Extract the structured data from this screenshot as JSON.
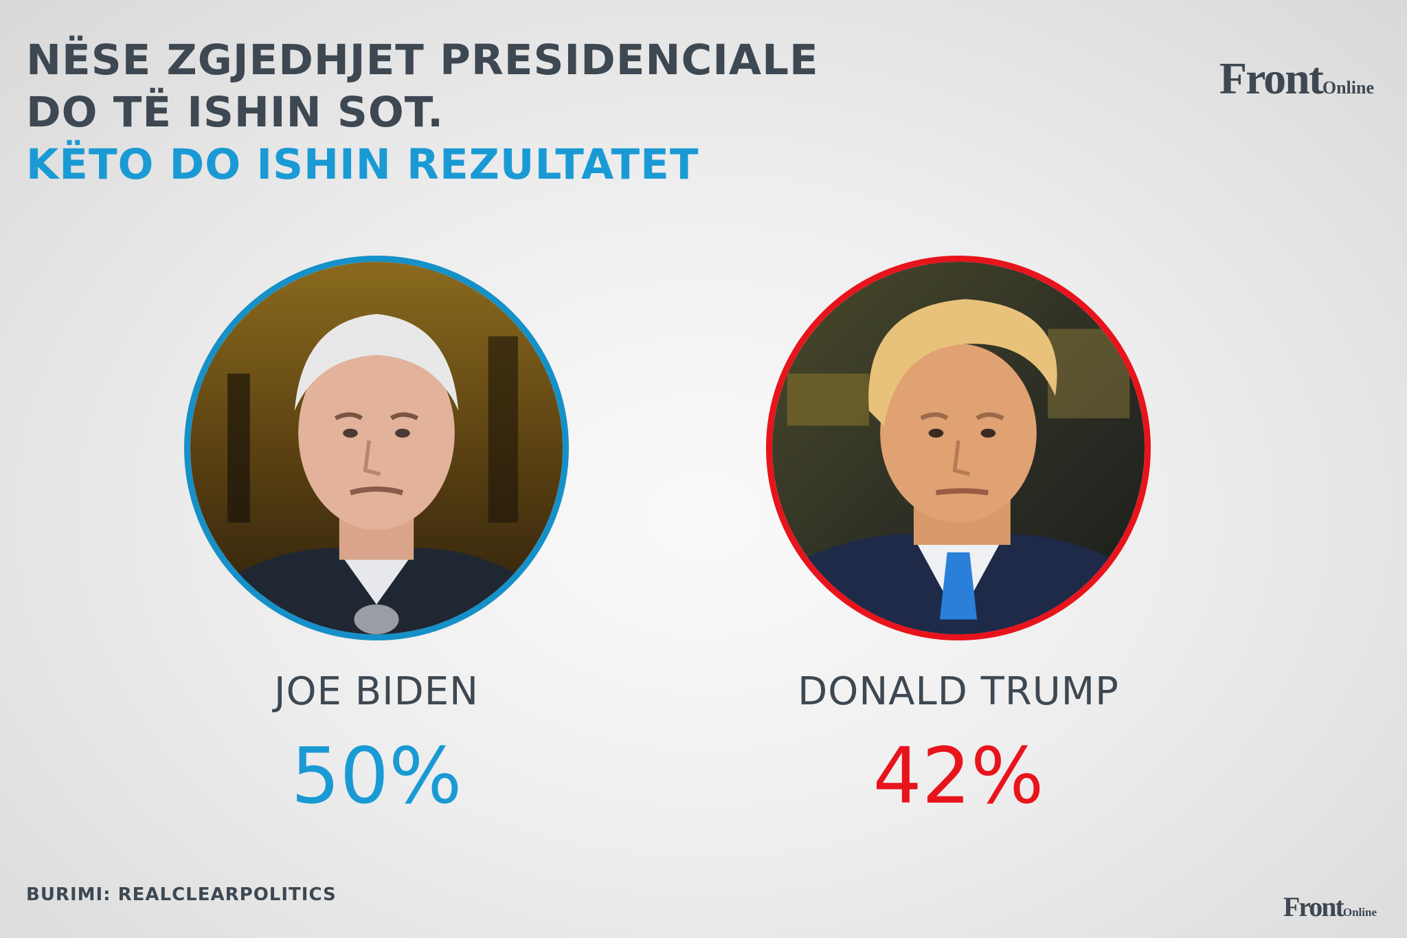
{
  "header": {
    "title_line1": "NËSE ZGJEDHJET PRESIDENCIALE",
    "title_line2": "DO TË ISHIN SOT.",
    "subtitle": "KËTO DO ISHIN REZULTATET"
  },
  "logo": {
    "main": "Front",
    "sub": "Online"
  },
  "candidates": [
    {
      "name": "JOE BIDEN",
      "percent": "50%",
      "color": "#1a9ad4"
    },
    {
      "name": "DONALD TRUMP",
      "percent": "42%",
      "color": "#e8141c"
    }
  ],
  "footer": {
    "source": "BURIMI: REALCLEARPOLITICS"
  }
}
